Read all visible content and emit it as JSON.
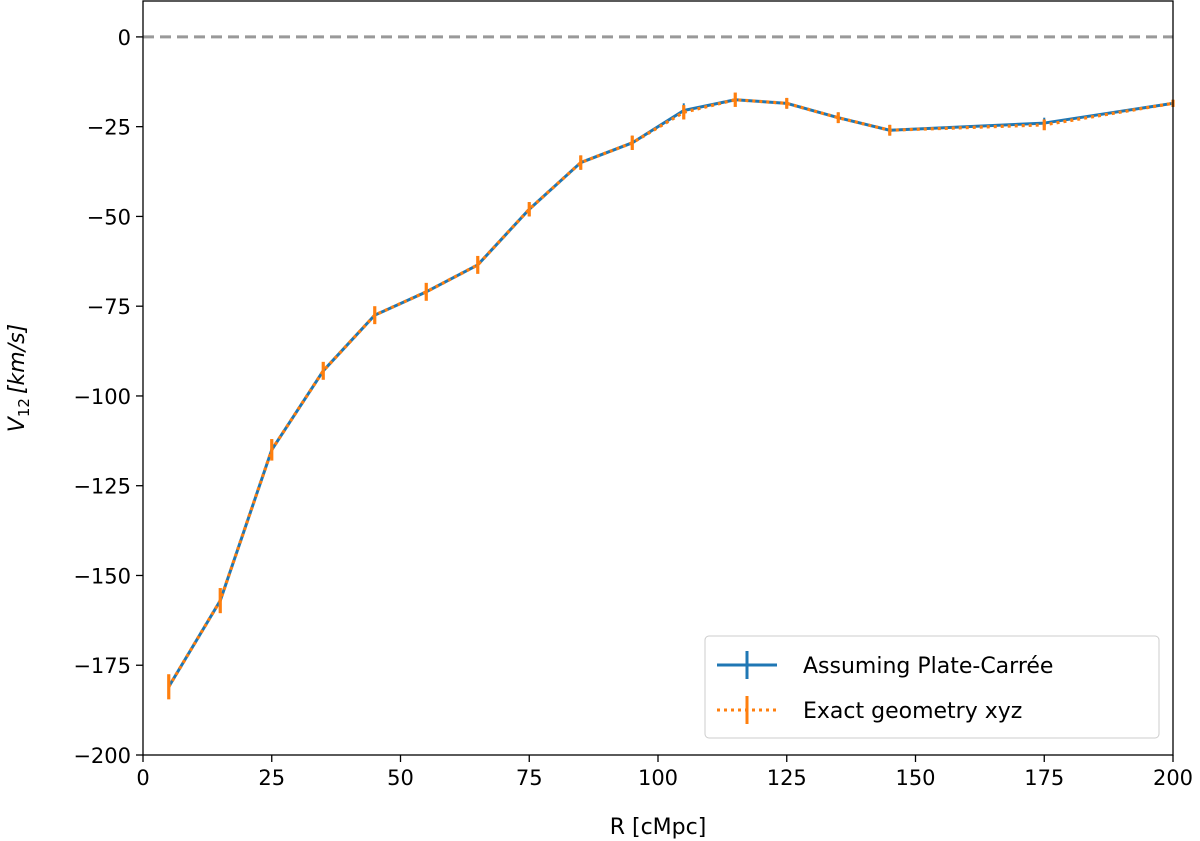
{
  "chart_data": {
    "type": "line",
    "title": "",
    "xlabel": "R [cMpc]",
    "ylabel": {
      "main": "V",
      "sub": "12",
      "unit": "[km/s]"
    },
    "xlim": [
      0,
      200
    ],
    "ylim": [
      -200,
      10
    ],
    "xticks": [
      0,
      25,
      50,
      75,
      100,
      125,
      150,
      175,
      200
    ],
    "yticks": [
      -200,
      -175,
      -150,
      -125,
      -100,
      -75,
      -50,
      -25,
      0
    ],
    "xtick_labels": [
      "0",
      "25",
      "50",
      "75",
      "100",
      "125",
      "150",
      "175",
      "200"
    ],
    "ytick_labels": [
      "−200",
      "−175",
      "−150",
      "−125",
      "−100",
      "−75",
      "−50",
      "−25",
      "0"
    ],
    "grid": false,
    "reference_line": {
      "y": 0,
      "style": "dashed",
      "color": "#999999"
    },
    "legend": {
      "placement": "bottom-right"
    },
    "series": [
      {
        "name": "Assuming Plate-Carrée",
        "color": "#1f77b4",
        "style": "solid",
        "x": [
          5,
          15,
          25,
          35,
          45,
          55,
          65,
          75,
          85,
          95,
          105,
          115,
          125,
          135,
          145,
          175,
          200
        ],
        "y": [
          -181,
          -157,
          -115,
          -93,
          -77.5,
          -71,
          -63.5,
          -48,
          -35,
          -29.5,
          -20.5,
          -17.5,
          -18.5,
          -22.5,
          -26,
          -24,
          -18.5
        ],
        "yerr": [
          2.5,
          2.5,
          2.5,
          2,
          2,
          2,
          2,
          2,
          2,
          2,
          2,
          1.5,
          1.5,
          1.5,
          1.5,
          1.5,
          1
        ]
      },
      {
        "name": "Exact geometry xyz",
        "color": "#ff7f0e",
        "style": "dotted",
        "x": [
          5,
          15,
          25,
          35,
          45,
          55,
          65,
          75,
          85,
          95,
          105,
          115,
          125,
          135,
          145,
          175,
          200
        ],
        "y": [
          -181,
          -157,
          -115,
          -93,
          -77.5,
          -71,
          -63.5,
          -48,
          -35,
          -29.5,
          -21,
          -17.5,
          -18.5,
          -22.5,
          -26,
          -24.5,
          -18.5
        ],
        "yerr": [
          3.5,
          3.5,
          3,
          2.5,
          2.5,
          2.5,
          2.5,
          2,
          2,
          2,
          2,
          2,
          1.5,
          1.5,
          1.5,
          1.5,
          1
        ]
      }
    ]
  }
}
